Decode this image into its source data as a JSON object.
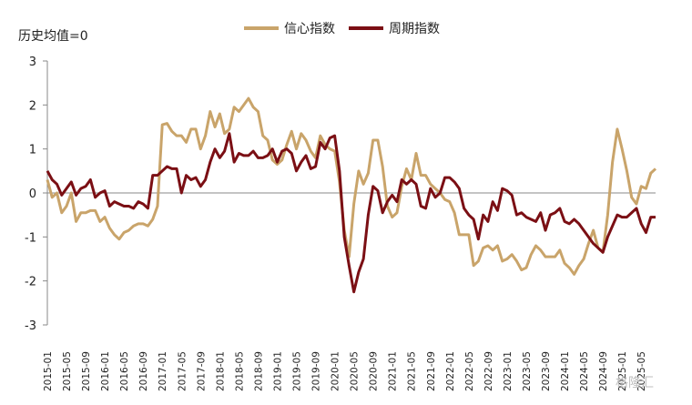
{
  "chart_data": {
    "type": "line",
    "ylabel_note": "历史均值=0",
    "ylim": [
      -3,
      3
    ],
    "yticks": [
      "3",
      "2",
      "1",
      "0",
      "-1",
      "-2",
      "-3"
    ],
    "legend_placement": "top-center",
    "x_start": "2015-01",
    "x_tick_labels": [
      "2015-01",
      "2015-05",
      "2015-09",
      "2016-01",
      "2016-05",
      "2016-09",
      "2017-01",
      "2017-05",
      "2017-09",
      "2018-01",
      "2018-05",
      "2018-09",
      "2019-01",
      "2019-05",
      "2019-09",
      "2020-01",
      "2020-05",
      "2020-09",
      "2021-01",
      "2021-05",
      "2021-09",
      "2022-01",
      "2022-05",
      "2022-09",
      "2023-01",
      "2023-05",
      "2023-09",
      "2024-01",
      "2024-05",
      "2024-09",
      "2025-01",
      "2025-05"
    ],
    "series": [
      {
        "name": "信心指数",
        "color": "#C9A46A",
        "values": [
          0.3,
          -0.1,
          0.0,
          -0.45,
          -0.3,
          0.0,
          -0.65,
          -0.45,
          -0.45,
          -0.4,
          -0.4,
          -0.65,
          -0.55,
          -0.8,
          -0.95,
          -1.05,
          -0.9,
          -0.85,
          -0.75,
          -0.7,
          -0.7,
          -0.75,
          -0.6,
          -0.3,
          1.55,
          1.58,
          1.4,
          1.3,
          1.3,
          1.15,
          1.45,
          1.45,
          1.0,
          1.3,
          1.85,
          1.5,
          1.8,
          1.35,
          1.45,
          1.95,
          1.85,
          2.0,
          2.15,
          1.95,
          1.85,
          1.3,
          1.2,
          0.75,
          0.65,
          0.75,
          1.1,
          1.4,
          1.0,
          1.35,
          1.2,
          0.95,
          0.8,
          1.3,
          1.1,
          1.0,
          0.95,
          0.25,
          -0.85,
          -1.45,
          -0.25,
          0.5,
          0.2,
          0.45,
          1.2,
          1.2,
          0.6,
          -0.3,
          -0.55,
          -0.45,
          0.15,
          0.55,
          0.3,
          0.9,
          0.4,
          0.4,
          0.2,
          0.1,
          0.0,
          -0.15,
          -0.2,
          -0.45,
          -0.95,
          -0.95,
          -0.95,
          -1.65,
          -1.55,
          -1.25,
          -1.2,
          -1.3,
          -1.2,
          -1.55,
          -1.5,
          -1.4,
          -1.55,
          -1.75,
          -1.7,
          -1.4,
          -1.2,
          -1.3,
          -1.45,
          -1.45,
          -1.45,
          -1.3,
          -1.6,
          -1.7,
          -1.85,
          -1.65,
          -1.5,
          -1.15,
          -0.85,
          -1.25,
          -1.35,
          -0.5,
          0.7,
          1.45,
          1.0,
          0.5,
          -0.1,
          -0.25,
          0.15,
          0.1,
          0.45,
          0.55
        ]
      },
      {
        "name": "周期指数",
        "color": "#7B0F14",
        "values": [
          0.5,
          0.3,
          0.2,
          -0.05,
          0.1,
          0.25,
          -0.05,
          0.1,
          0.15,
          0.3,
          -0.1,
          0.0,
          0.05,
          -0.3,
          -0.2,
          -0.25,
          -0.3,
          -0.3,
          -0.35,
          -0.2,
          -0.25,
          -0.35,
          0.4,
          0.4,
          0.5,
          0.6,
          0.55,
          0.55,
          0.0,
          0.4,
          0.3,
          0.35,
          0.15,
          0.3,
          0.7,
          1.0,
          0.8,
          0.95,
          1.35,
          0.7,
          0.9,
          0.85,
          0.85,
          0.95,
          0.8,
          0.8,
          0.85,
          1.0,
          0.7,
          0.95,
          1.0,
          0.9,
          0.5,
          0.7,
          0.85,
          0.55,
          0.6,
          1.15,
          1.0,
          1.25,
          1.3,
          0.5,
          -1.0,
          -1.65,
          -2.25,
          -1.8,
          -1.5,
          -0.5,
          0.15,
          0.05,
          -0.45,
          -0.2,
          -0.05,
          -0.2,
          0.3,
          0.2,
          0.3,
          0.2,
          -0.3,
          -0.35,
          0.1,
          -0.1,
          0.0,
          0.35,
          0.35,
          0.25,
          0.1,
          -0.35,
          -0.5,
          -0.6,
          -1.05,
          -0.5,
          -0.65,
          -0.2,
          -0.4,
          0.1,
          0.05,
          -0.05,
          -0.5,
          -0.45,
          -0.55,
          -0.6,
          -0.65,
          -0.45,
          -0.85,
          -0.5,
          -0.45,
          -0.35,
          -0.65,
          -0.7,
          -0.6,
          -0.7,
          -0.85,
          -1.0,
          -1.15,
          -1.25,
          -1.35,
          -1.0,
          -0.75,
          -0.5,
          -0.55,
          -0.55,
          -0.45,
          -0.35,
          -0.7,
          -0.9,
          -0.55,
          -0.55
        ]
      }
    ]
  },
  "watermark": "格隆汇"
}
